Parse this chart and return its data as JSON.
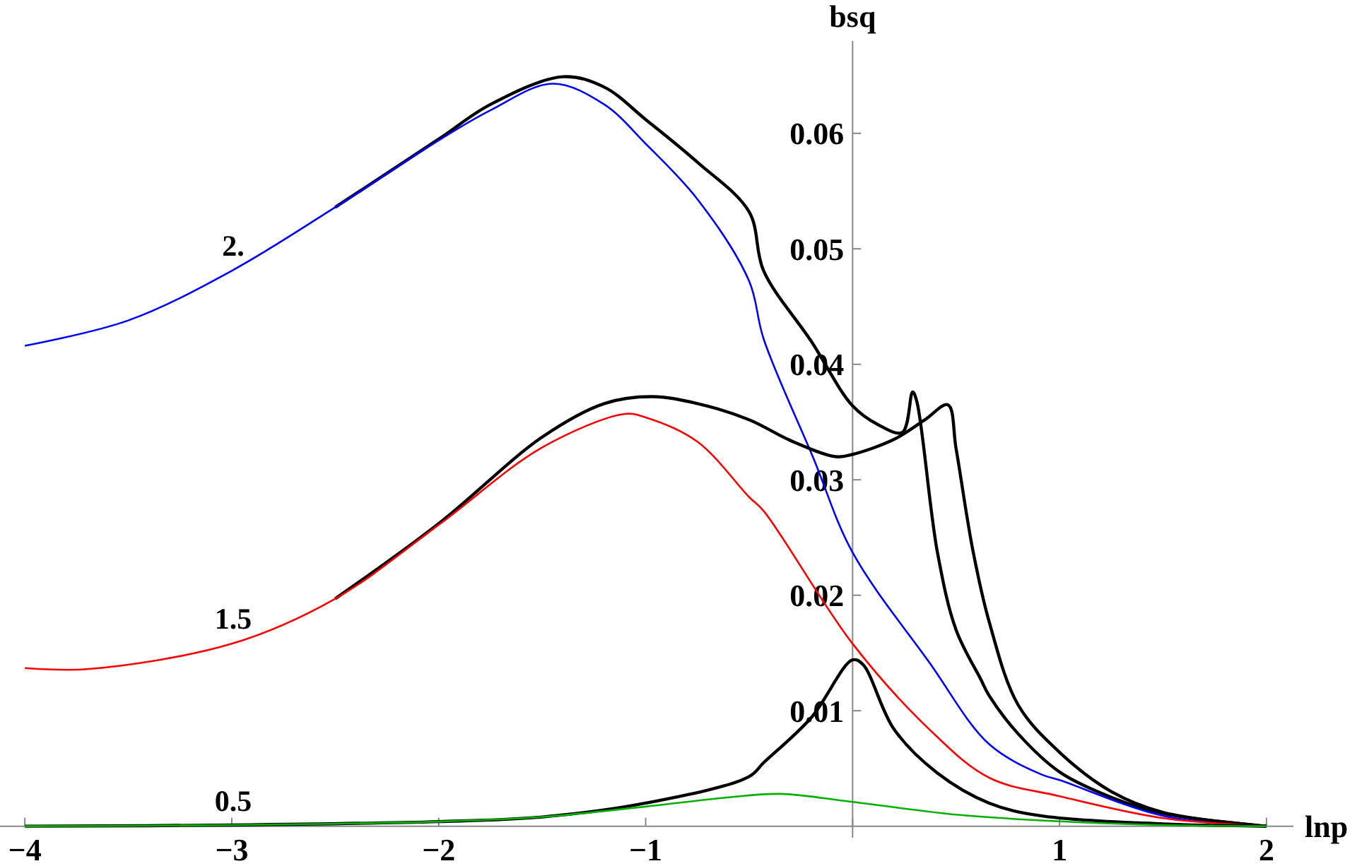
{
  "chart_data": {
    "type": "line",
    "xlabel": "lnp",
    "ylabel": "bsq",
    "xlim": [
      -4.12,
      2.13
    ],
    "ylim": [
      -0.001,
      0.068
    ],
    "xticks": [
      {
        "value": -4,
        "label": "−4"
      },
      {
        "value": -3,
        "label": "−3"
      },
      {
        "value": -2,
        "label": "−2"
      },
      {
        "value": -1,
        "label": "−1"
      },
      {
        "value": 0,
        "label": null
      },
      1,
      2
    ],
    "yticks": [
      0.01,
      0.02,
      0.03,
      0.04,
      0.05,
      0.06
    ],
    "series": [
      {
        "color": "#000000",
        "x": [
          -2.5,
          -2,
          -1.75,
          -1.4,
          -1.2,
          -1,
          -0.75,
          -0.5,
          -0.43,
          -0.2,
          0,
          0.12,
          0.24,
          0.29,
          0.31,
          0.41,
          0.5,
          0.62,
          0.66,
          0.8,
          1,
          1.25,
          1.5,
          2
        ],
        "values": [
          0.0536,
          0.0595,
          0.0625,
          0.0649,
          0.064,
          0.0612,
          0.0575,
          0.0532,
          0.0481,
          0.042,
          0.0364,
          0.0348,
          0.0341,
          0.0376,
          0.0368,
          0.0237,
          0.017,
          0.0127,
          0.0113,
          0.008,
          0.0047,
          0.0025,
          0.0011,
          0
        ]
      },
      {
        "color": "#0000ff",
        "x": [
          -4,
          -3.5,
          -3,
          -2.5,
          -2,
          -1.75,
          -1.45,
          -1.2,
          -1,
          -0.75,
          -0.5,
          -0.43,
          -0.19,
          0,
          0.37,
          0.66,
          0.91,
          1,
          1.5,
          2
        ],
        "values": [
          0.0416,
          0.0438,
          0.0481,
          0.0536,
          0.0594,
          0.062,
          0.0643,
          0.0625,
          0.0591,
          0.0543,
          0.0472,
          0.0422,
          0.0319,
          0.0237,
          0.0142,
          0.0071,
          0.0045,
          0.004,
          0.0009,
          0
        ]
      },
      {
        "color": "#000000",
        "x": [
          -2.5,
          -2,
          -1.5,
          -1.2,
          -0.97,
          -0.75,
          -0.5,
          -0.3,
          -0.08,
          0,
          0.2,
          0.35,
          0.46,
          0.5,
          0.58,
          0.66,
          0.8,
          1,
          1.25,
          1.5,
          2
        ],
        "values": [
          0.0197,
          0.0262,
          0.0337,
          0.0366,
          0.0372,
          0.0366,
          0.0352,
          0.0334,
          0.032,
          0.0322,
          0.0335,
          0.0352,
          0.0365,
          0.0327,
          0.024,
          0.0177,
          0.0105,
          0.0064,
          0.003,
          0.0012,
          0
        ]
      },
      {
        "color": "#ff0000",
        "x": [
          -4,
          -3.7,
          -3,
          -2.5,
          -2,
          -1.5,
          -1.1,
          -1,
          -0.75,
          -0.5,
          -0.43,
          0,
          0.37,
          0.66,
          1,
          1.5,
          2
        ],
        "values": [
          0.0137,
          0.0136,
          0.0158,
          0.0197,
          0.0261,
          0.0328,
          0.0357,
          0.0354,
          0.0333,
          0.0285,
          0.0273,
          0.0158,
          0.0084,
          0.0042,
          0.0026,
          0.0007,
          0
        ]
      },
      {
        "color": "#000000",
        "x": [
          -4,
          -3,
          -2,
          -1.5,
          -1,
          -0.5,
          -0.43,
          -0.2,
          0,
          0.05,
          0.2,
          0.41,
          0.66,
          0.91,
          1.5,
          2
        ],
        "values": [
          0,
          0.0001,
          0.0004,
          0.0008,
          0.002,
          0.0043,
          0.0055,
          0.0094,
          0.0144,
          0.014,
          0.0084,
          0.0046,
          0.002,
          0.0009,
          0.0002,
          0
        ]
      },
      {
        "color": "#00b000",
        "x": [
          -4,
          -3,
          -2,
          -1.5,
          -1,
          -0.6,
          -0.35,
          0,
          0.5,
          0.91,
          1.5,
          2
        ],
        "values": [
          0,
          0.0001,
          0.0004,
          0.0008,
          0.0017,
          0.0025,
          0.0028,
          0.0021,
          0.001,
          0.0005,
          0.0001,
          0
        ]
      }
    ],
    "annotations": [
      "2.",
      "1.5",
      "0.5"
    ]
  }
}
